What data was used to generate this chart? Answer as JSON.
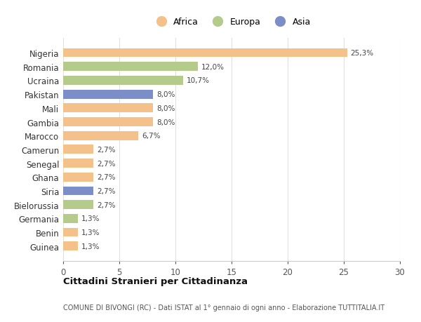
{
  "categories": [
    "Nigeria",
    "Romania",
    "Ucraina",
    "Pakistan",
    "Mali",
    "Gambia",
    "Marocco",
    "Camerun",
    "Senegal",
    "Ghana",
    "Siria",
    "Bielorussia",
    "Germania",
    "Benin",
    "Guinea"
  ],
  "values": [
    25.3,
    12.0,
    10.7,
    8.0,
    8.0,
    8.0,
    6.7,
    2.7,
    2.7,
    2.7,
    2.7,
    2.7,
    1.3,
    1.3,
    1.3
  ],
  "labels": [
    "25,3%",
    "12,0%",
    "10,7%",
    "8,0%",
    "8,0%",
    "8,0%",
    "6,7%",
    "2,7%",
    "2,7%",
    "2,7%",
    "2,7%",
    "2,7%",
    "1,3%",
    "1,3%",
    "1,3%"
  ],
  "colors": [
    "#F5C18A",
    "#B5CB8B",
    "#B5CB8B",
    "#7B8EC8",
    "#F5C18A",
    "#F5C18A",
    "#F5C18A",
    "#F5C18A",
    "#F5C18A",
    "#F5C18A",
    "#7B8EC8",
    "#B5CB8B",
    "#B5CB8B",
    "#F5C18A",
    "#F5C18A"
  ],
  "continent_colors": {
    "Africa": "#F5C18A",
    "Europa": "#B5CB8B",
    "Asia": "#7B8EC8"
  },
  "title": "Cittadini Stranieri per Cittadinanza",
  "subtitle": "COMUNE DI BIVONGI (RC) - Dati ISTAT al 1° gennaio di ogni anno - Elaborazione TUTTITALIA.IT",
  "xlim": [
    0,
    30
  ],
  "xticks": [
    0,
    5,
    10,
    15,
    20,
    25,
    30
  ],
  "background_color": "#ffffff",
  "grid_color": "#e0e0e0"
}
